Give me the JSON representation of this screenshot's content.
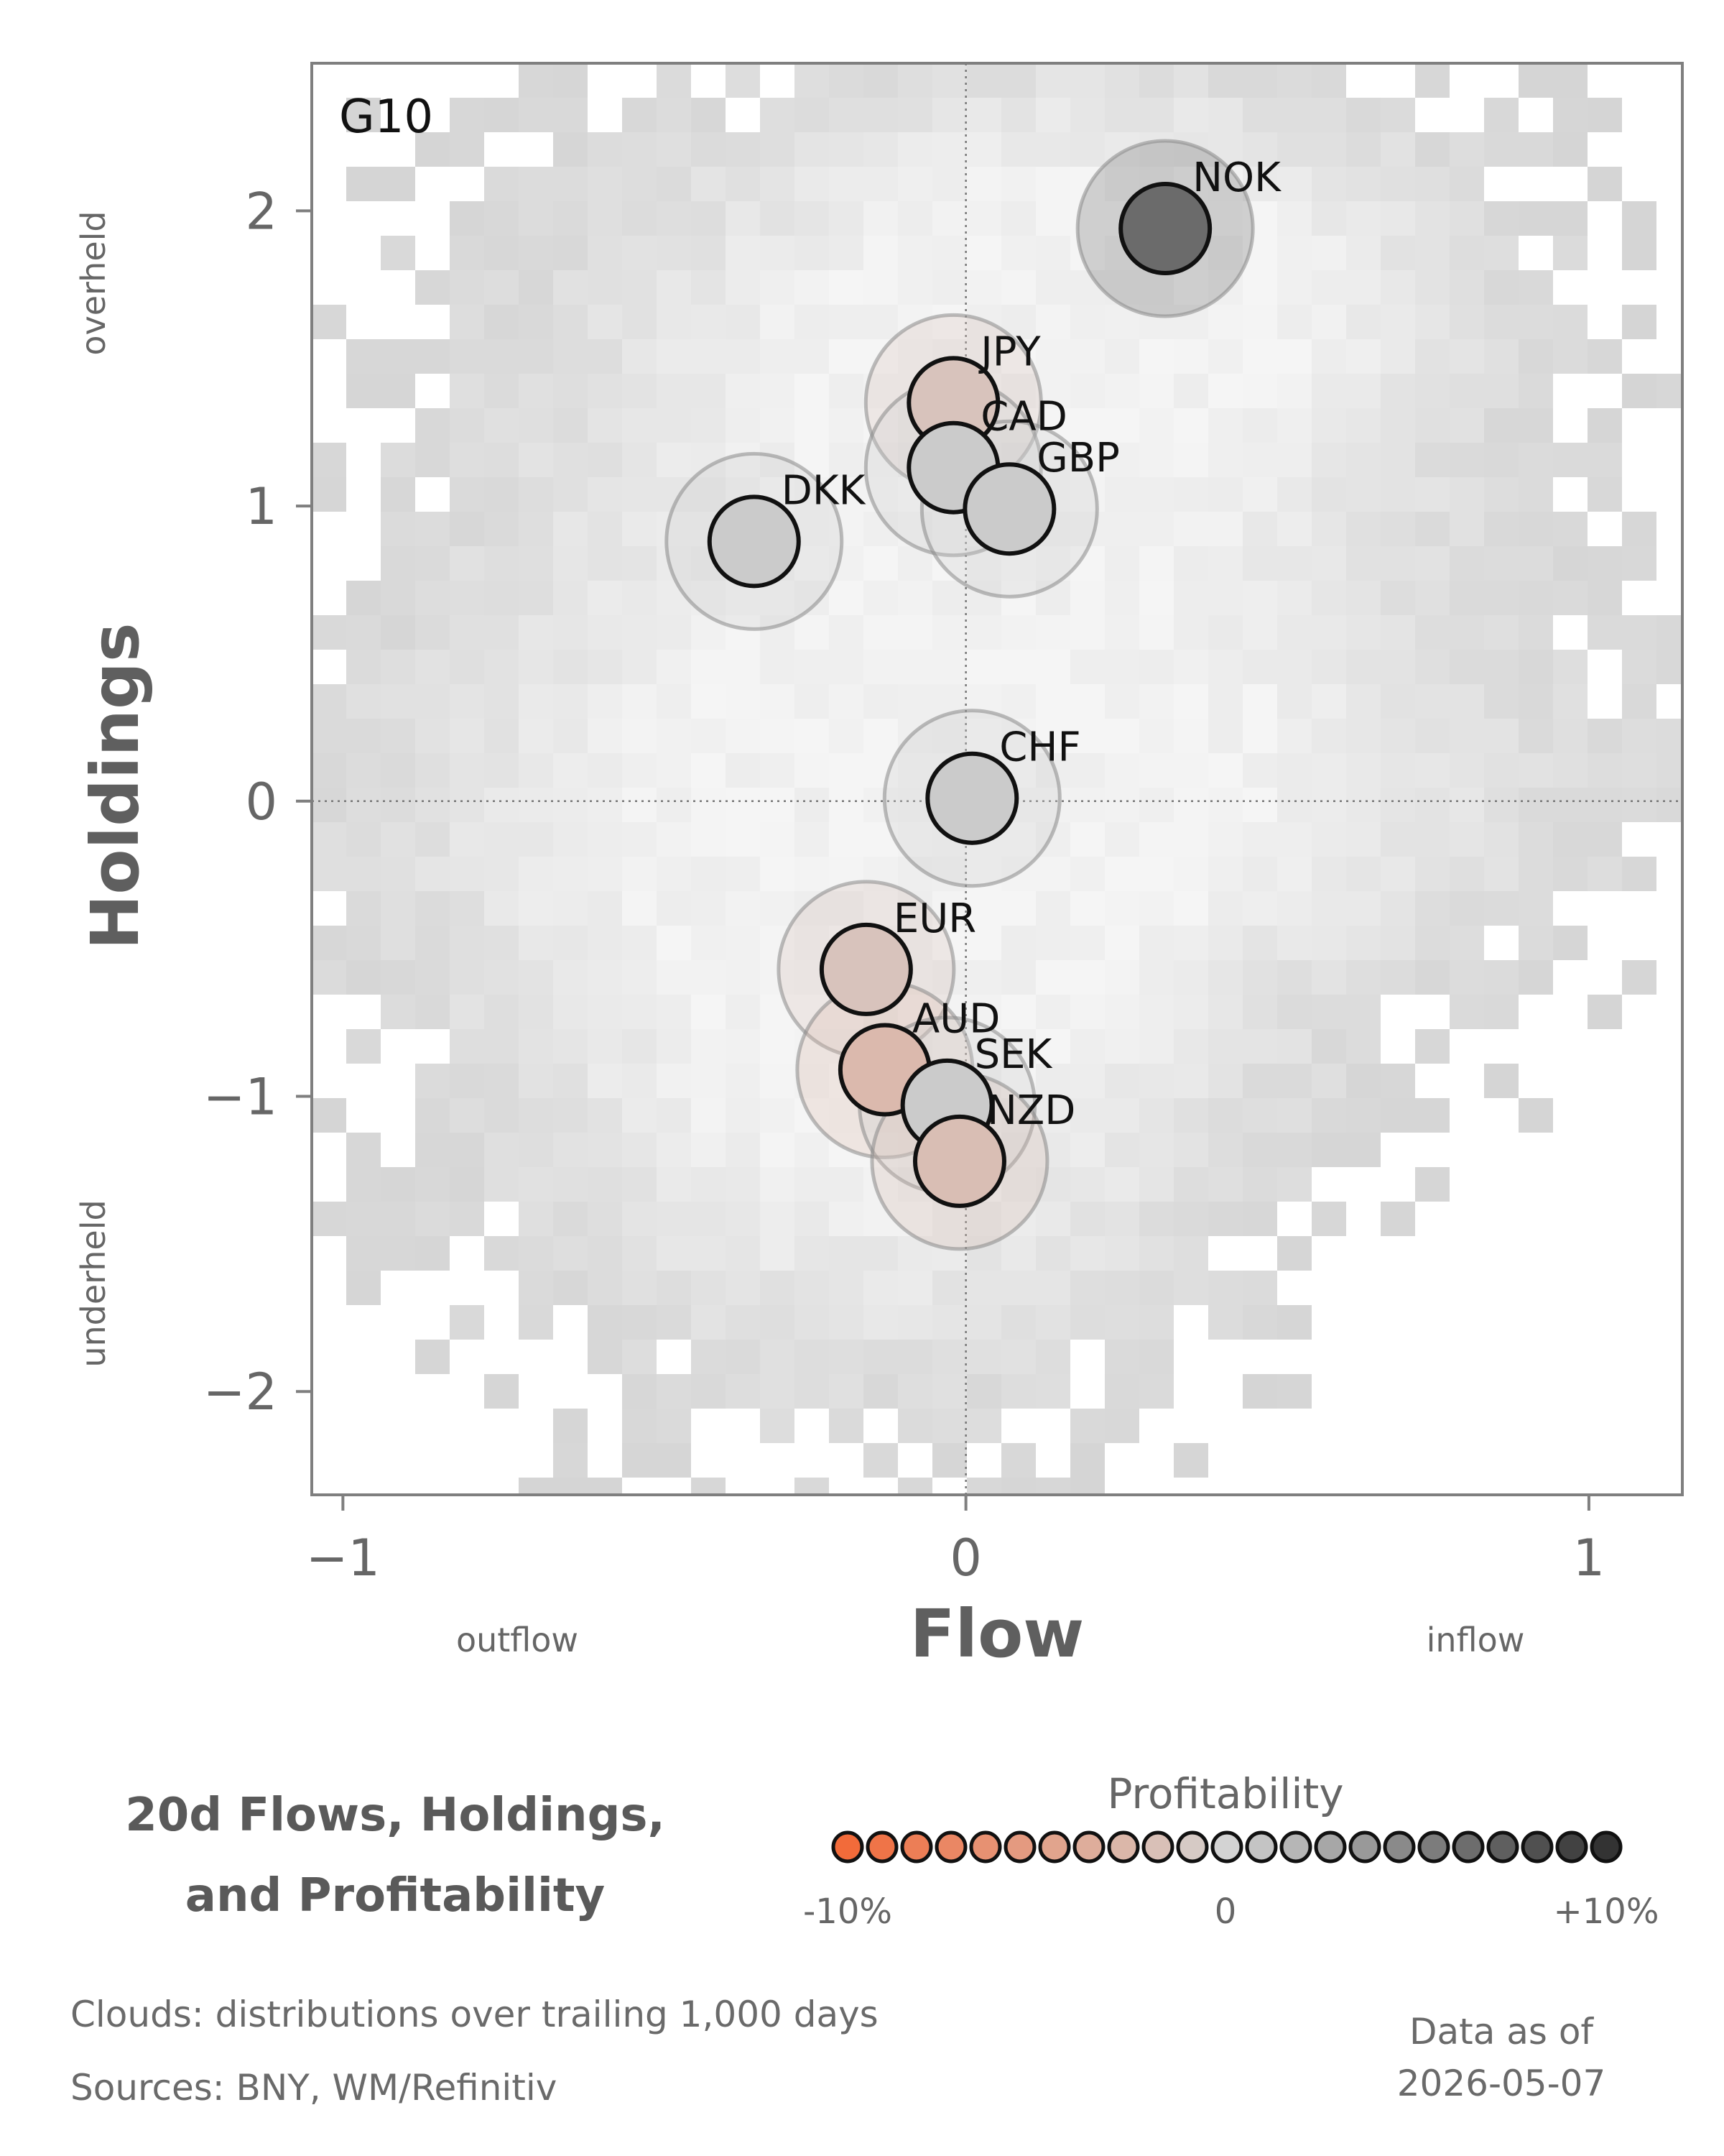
{
  "chart_data": {
    "type": "scatter",
    "panel_label": "G10",
    "xlabel": "Flow",
    "ylabel": "Holdings",
    "xlim": [
      -1.05,
      1.15
    ],
    "ylim": [
      -2.35,
      2.5
    ],
    "x_ticks": [
      -1,
      0,
      1
    ],
    "x_tick_labels": [
      "−1",
      "0",
      "1"
    ],
    "y_ticks": [
      2,
      1,
      0,
      -1,
      -2
    ],
    "y_tick_labels": [
      "2",
      "1",
      "0",
      "−1",
      "−2"
    ],
    "x_side_labels": {
      "left": "outflow",
      "right": "inflow"
    },
    "y_side_labels": {
      "top": "overheld",
      "bottom": "underheld"
    },
    "reference_lines": {
      "x": 0,
      "y": 0,
      "style": "dotted"
    },
    "grid": false,
    "background": "density heatmap clouds (grey) of trailing distributions",
    "points": [
      {
        "label": "NOK",
        "x": 0.32,
        "y": 1.94,
        "profitability": 6.5
      },
      {
        "label": "JPY",
        "x": -0.02,
        "y": 1.35,
        "profitability": -1.5
      },
      {
        "label": "CAD",
        "x": -0.02,
        "y": 1.13,
        "profitability": 0.5
      },
      {
        "label": "GBP",
        "x": 0.07,
        "y": 0.99,
        "profitability": 0.5
      },
      {
        "label": "DKK",
        "x": -0.34,
        "y": 0.88,
        "profitability": 0.5
      },
      {
        "label": "CHF",
        "x": 0.01,
        "y": 0.01,
        "profitability": 0.5
      },
      {
        "label": "EUR",
        "x": -0.16,
        "y": -0.57,
        "profitability": -1.5
      },
      {
        "label": "AUD",
        "x": -0.13,
        "y": -0.91,
        "profitability": -2.5
      },
      {
        "label": "SEK",
        "x": -0.03,
        "y": -1.03,
        "profitability": 0.5
      },
      {
        "label": "NZD",
        "x": -0.01,
        "y": -1.22,
        "profitability": -2.0
      }
    ],
    "legend": {
      "title": "Profitability",
      "min_label": "-10%",
      "mid_label": "0",
      "max_label": "+10%",
      "range": [
        -10,
        10
      ],
      "swatch_count": 23,
      "colors": {
        "negative": "#f26b3a",
        "neutral": "#d3d3d3",
        "positive": "#333333"
      }
    }
  },
  "chart_title_lines": [
    "20d Flows, Holdings,",
    "and Profitability"
  ],
  "footer": {
    "clouds_note": "Clouds:  distributions over trailing 1,000 days",
    "sources": "Sources:  BNY, WM/Refinitiv",
    "data_as_of_label": "Data as of",
    "data_as_of_date": "2026-05-07"
  }
}
